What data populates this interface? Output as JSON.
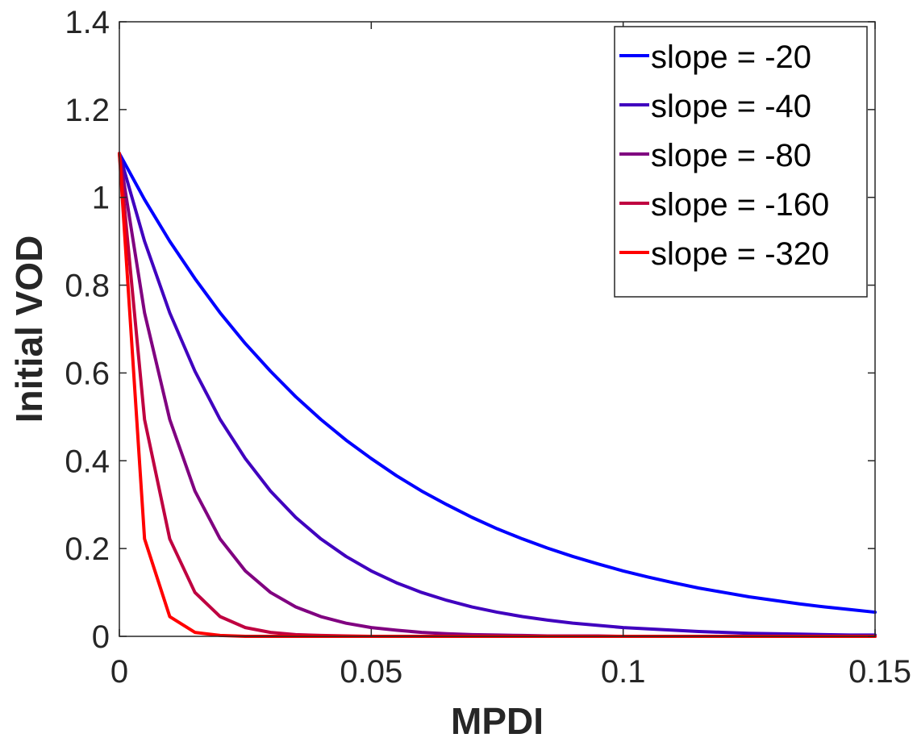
{
  "chart_data": {
    "type": "line",
    "title": "",
    "xlabel": "MPDI",
    "ylabel": "Initial VOD",
    "xlim": [
      0,
      0.15
    ],
    "ylim": [
      0,
      1.4
    ],
    "xticks": [
      0,
      0.05,
      0.1,
      0.15
    ],
    "xtick_labels": [
      "0",
      "0.05",
      "0.1",
      "0.15"
    ],
    "yticks": [
      0,
      0.2,
      0.4,
      0.6,
      0.8,
      1.0,
      1.2,
      1.4
    ],
    "ytick_labels": [
      "0",
      "0.2",
      "0.4",
      "0.6",
      "0.8",
      "1",
      "1.2",
      "1.4"
    ],
    "grid": false,
    "legend_position": "top-right",
    "x": [
      0,
      0.005,
      0.01,
      0.015,
      0.02,
      0.025,
      0.03,
      0.035,
      0.04,
      0.045,
      0.05,
      0.055,
      0.06,
      0.065,
      0.07,
      0.075,
      0.08,
      0.085,
      0.09,
      0.095,
      0.1,
      0.105,
      0.11,
      0.115,
      0.12,
      0.125,
      0.13,
      0.135,
      0.14,
      0.145,
      0.15
    ],
    "series": [
      {
        "name": "slope = -20",
        "color": "#0000ff",
        "values": [
          1.1,
          0.995,
          0.9,
          0.815,
          0.737,
          0.667,
          0.604,
          0.546,
          0.494,
          0.447,
          0.405,
          0.366,
          0.331,
          0.3,
          0.271,
          0.245,
          0.222,
          0.201,
          0.182,
          0.165,
          0.149,
          0.135,
          0.122,
          0.11,
          0.1,
          0.09,
          0.082,
          0.074,
          0.067,
          0.061,
          0.055
        ]
      },
      {
        "name": "slope = -40",
        "color": "#4000bf",
        "values": [
          1.1,
          0.9,
          0.737,
          0.604,
          0.494,
          0.405,
          0.331,
          0.271,
          0.222,
          0.182,
          0.149,
          0.122,
          0.1,
          0.082,
          0.067,
          0.055,
          0.045,
          0.037,
          0.03,
          0.025,
          0.02,
          0.017,
          0.014,
          0.011,
          0.009,
          0.007,
          0.006,
          0.005,
          0.004,
          0.003,
          0.003
        ]
      },
      {
        "name": "slope = -80",
        "color": "#800080",
        "values": [
          1.1,
          0.737,
          0.494,
          0.331,
          0.222,
          0.149,
          0.1,
          0.067,
          0.045,
          0.03,
          0.02,
          0.014,
          0.009,
          0.006,
          0.004,
          0.003,
          0.002,
          0.001,
          0.001,
          0.001,
          0,
          0,
          0,
          0,
          0,
          0,
          0,
          0,
          0,
          0,
          0
        ]
      },
      {
        "name": "slope = -160",
        "color": "#bf0040",
        "values": [
          1.1,
          0.494,
          0.222,
          0.1,
          0.045,
          0.02,
          0.009,
          0.004,
          0.002,
          0.001,
          0,
          0,
          0,
          0,
          0,
          0,
          0,
          0,
          0,
          0,
          0,
          0,
          0,
          0,
          0,
          0,
          0,
          0,
          0,
          0,
          0
        ]
      },
      {
        "name": "slope = -320",
        "color": "#ff0000",
        "values": [
          1.1,
          0.222,
          0.045,
          0.009,
          0.002,
          0,
          0,
          0,
          0,
          0,
          0,
          0,
          0,
          0,
          0,
          0,
          0,
          0,
          0,
          0,
          0,
          0,
          0,
          0,
          0,
          0,
          0,
          0,
          0,
          0,
          0
        ]
      }
    ]
  }
}
